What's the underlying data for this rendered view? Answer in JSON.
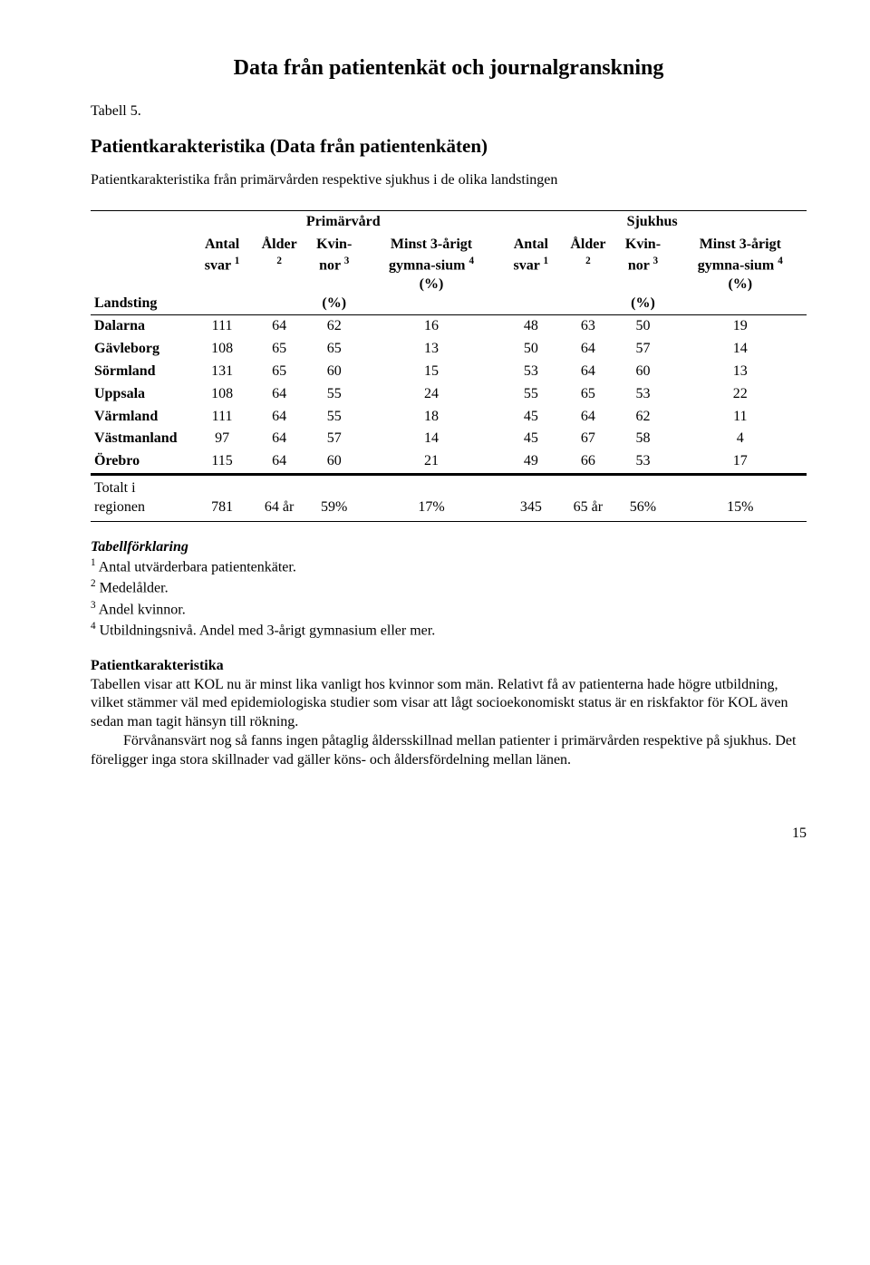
{
  "title": "Data från patientenkät och journalgranskning",
  "tableLabel": "Tabell 5.",
  "subheading": "Patientkarakteristika (Data från patientenkäten)",
  "subdesc": "Patientkarakteristika från primärvården respektive sjukhus i de olika landstingen",
  "groupHeaders": {
    "g1": "Primärvård",
    "g2": "Sjukhus"
  },
  "colHeaders": {
    "landsting": "Landsting",
    "antal_html": "Antal svar <sup>1</sup>",
    "alder_html": "Ålder <sup>2</sup>",
    "kvinnor_html": "Kvin-nor <sup>3</sup><br><br>(%)",
    "gym_html": "Minst 3-årigt gymna-sium <sup>4</sup><br>(%)"
  },
  "rows": [
    {
      "land": "Dalarna",
      "a1": "111",
      "a2": "64",
      "a3": "62",
      "a4": "16",
      "b1": "48",
      "b2": "63",
      "b3": "50",
      "b4": "19"
    },
    {
      "land": "Gävleborg",
      "a1": "108",
      "a2": "65",
      "a3": "65",
      "a4": "13",
      "b1": "50",
      "b2": "64",
      "b3": "57",
      "b4": "14"
    },
    {
      "land": "Sörmland",
      "a1": "131",
      "a2": "65",
      "a3": "60",
      "a4": "15",
      "b1": "53",
      "b2": "64",
      "b3": "60",
      "b4": "13"
    },
    {
      "land": "Uppsala",
      "a1": "108",
      "a2": "64",
      "a3": "55",
      "a4": "24",
      "b1": "55",
      "b2": "65",
      "b3": "53",
      "b4": "22"
    },
    {
      "land": "Värmland",
      "a1": "111",
      "a2": "64",
      "a3": "55",
      "a4": "18",
      "b1": "45",
      "b2": "64",
      "b3": "62",
      "b4": "11"
    },
    {
      "land": "Västmanland",
      "a1": "97",
      "a2": "64",
      "a3": "57",
      "a4": "14",
      "b1": "45",
      "b2": "67",
      "b3": "58",
      "b4": "4"
    },
    {
      "land": "Örebro",
      "a1": "115",
      "a2": "64",
      "a3": "60",
      "a4": "21",
      "b1": "49",
      "b2": "66",
      "b3": "53",
      "b4": "17"
    }
  ],
  "totalRow": {
    "land": "Totalt i regionen",
    "a1": "781",
    "a2": "64 år",
    "a3": "59%",
    "a4": "17%",
    "b1": "345",
    "b2": "65 år",
    "b3": "56%",
    "b4": "15%"
  },
  "footnotes": {
    "title": "Tabellförklaring",
    "f1_html": "<sup>1</sup> Antal utvärderbara patientenkäter.",
    "f2_html": "<sup>2</sup> Medelålder.",
    "f3_html": "<sup>3</sup> Andel kvinnor.",
    "f4_html": "<sup>4</sup> Utbildningsnivå. Andel med 3-årigt gymnasium eller mer."
  },
  "section": {
    "title": "Patientkarakteristika",
    "p1": "Tabellen visar att KOL nu är minst lika vanligt hos kvinnor som män. Relativt få av patienterna hade högre utbildning, vilket stämmer väl med epidemiologiska studier som visar att lågt socioekonomiskt status är en riskfaktor för KOL även sedan man tagit hänsyn till rökning.",
    "p2": "Förvånansvärt nog så fanns ingen påtaglig åldersskillnad mellan patienter i primärvården respektive på sjukhus. Det föreligger inga stora skillnader vad gäller köns- och åldersfördelning mellan länen."
  },
  "pageNumber": "15"
}
